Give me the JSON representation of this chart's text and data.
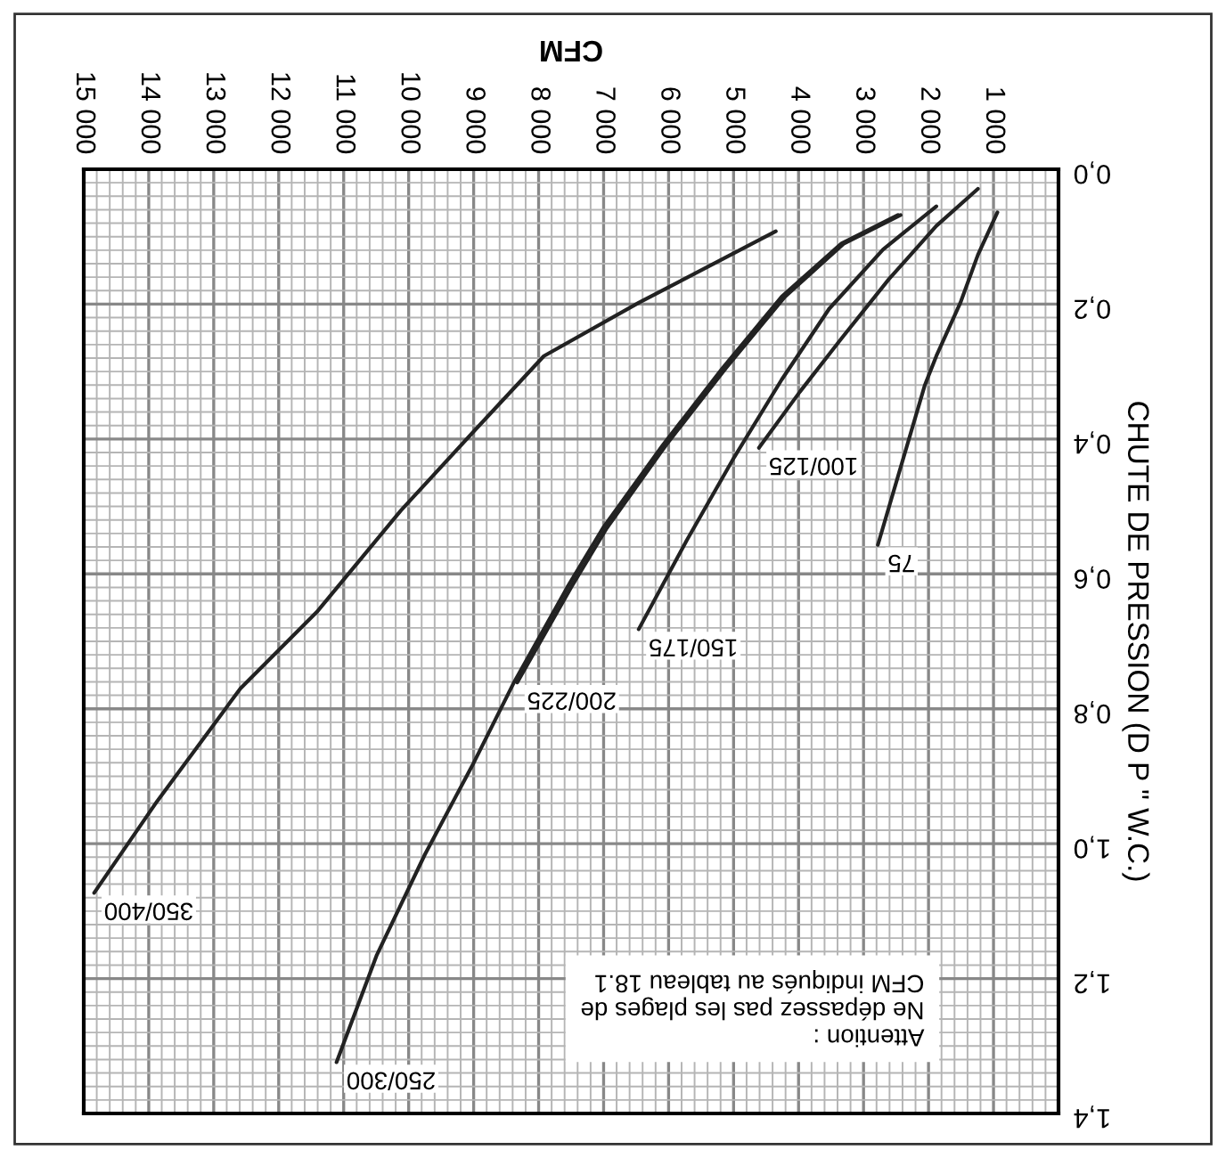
{
  "chart_data": {
    "type": "line",
    "xlabel": "CFM",
    "ylabel": "CHUTE DE PRESSION (D P \" W.C.)",
    "xlim": [
      15000,
      0
    ],
    "ylim": [
      1.4,
      0
    ],
    "xticks": [
      {
        "value": 1000,
        "label": "1 000"
      },
      {
        "value": 2000,
        "label": "2 000"
      },
      {
        "value": 3000,
        "label": "3 000"
      },
      {
        "value": 4000,
        "label": "4 000"
      },
      {
        "value": 5000,
        "label": "5 000"
      },
      {
        "value": 6000,
        "label": "6 000"
      },
      {
        "value": 7000,
        "label": "7 000"
      },
      {
        "value": 8000,
        "label": "8 000"
      },
      {
        "value": 9000,
        "label": "9 000"
      },
      {
        "value": 10000,
        "label": "10 000"
      },
      {
        "value": 11000,
        "label": "11 000"
      },
      {
        "value": 12000,
        "label": "12 000"
      },
      {
        "value": 13000,
        "label": "13 000"
      },
      {
        "value": 14000,
        "label": "14 000"
      },
      {
        "value": 15000,
        "label": "15 000"
      }
    ],
    "yticks": [
      {
        "value": 0,
        "label": "0,0"
      },
      {
        "value": 0.2,
        "label": "0,2"
      },
      {
        "value": 0.4,
        "label": "0,4"
      },
      {
        "value": 0.6,
        "label": "0,6"
      },
      {
        "value": 0.8,
        "label": "0,8"
      },
      {
        "value": 1.0,
        "label": "1,0"
      },
      {
        "value": 1.2,
        "label": "1,2"
      },
      {
        "value": 1.4,
        "label": "1,4"
      }
    ],
    "grid": true,
    "legend": false,
    "marker": "none",
    "line_style": "solid",
    "series": [
      {
        "name": "75",
        "color": "#222222",
        "x": [
          940,
          1240,
          1510,
          1880,
          2060,
          2780
        ],
        "values": [
          0.064,
          0.127,
          0.198,
          0.277,
          0.321,
          0.557
        ]
      },
      {
        "name": "100/125",
        "color": "#222222",
        "x": [
          1240,
          1880,
          2610,
          3340,
          3980,
          4610
        ],
        "values": [
          0.029,
          0.084,
          0.163,
          0.251,
          0.33,
          0.413
        ]
      },
      {
        "name": "150/175",
        "color": "#222222",
        "x": [
          1880,
          2700,
          3530,
          4260,
          4990,
          5720,
          6460
        ],
        "values": [
          0.055,
          0.119,
          0.207,
          0.312,
          0.427,
          0.55,
          0.682
        ]
      },
      {
        "name": "200/225",
        "color": "#222222",
        "x": [
          2430,
          3300,
          4210,
          5120,
          6040,
          6950,
          7500,
          8330
        ],
        "values": [
          0.068,
          0.11,
          0.189,
          0.295,
          0.409,
          0.532,
          0.62,
          0.761
        ]
      },
      {
        "name": "250/300",
        "color": "#222222",
        "x": [
          2470,
          3340,
          4260,
          5170,
          6090,
          7010,
          7560,
          8380,
          9020,
          9750,
          10490,
          11110
        ],
        "values": [
          0.068,
          0.11,
          0.189,
          0.295,
          0.409,
          0.532,
          0.62,
          0.761,
          0.884,
          1.016,
          1.165,
          1.324
        ]
      },
      {
        "name": "350/400",
        "color": "#222222",
        "x": [
          4350,
          6460,
          7920,
          9020,
          10120,
          11400,
          12590,
          13870,
          14840
        ],
        "values": [
          0.092,
          0.198,
          0.277,
          0.391,
          0.506,
          0.655,
          0.77,
          0.937,
          1.073
        ]
      }
    ],
    "annotations": [
      "Attention :\nNe dépassez pas les plages de\nCFM indiqués au tableau 18.1"
    ]
  }
}
